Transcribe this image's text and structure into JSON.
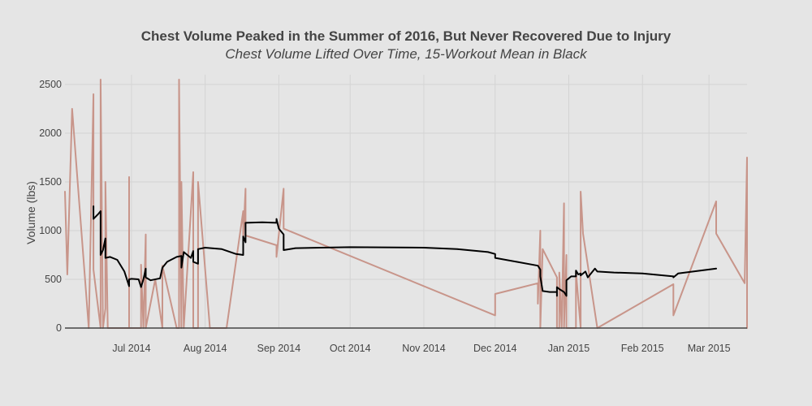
{
  "chart_data": {
    "type": "line",
    "title": "Chest Volume Peaked in the Summer of 2016, But Never Recovered Due to Injury",
    "subtitle": "Chest Volume Lifted Over Time, 15-Workout Mean in Black",
    "xlabel": "",
    "ylabel": "Volume (lbs)",
    "xlim": [
      "2014-06-03",
      "2015-03-17"
    ],
    "ylim": [
      0,
      2600
    ],
    "x_tick_values": [
      "2014-07-01",
      "2014-08-01",
      "2014-09-01",
      "2014-10-01",
      "2014-11-01",
      "2014-12-01",
      "2015-01-01",
      "2015-02-01",
      "2015-03-01"
    ],
    "x_tick_labels": [
      "Jul 2014",
      "Aug 2014",
      "Sep 2014",
      "Oct 2014",
      "Nov 2014",
      "Dec 2014",
      "Jan 2015",
      "Feb 2015",
      "Mar 2015"
    ],
    "y_ticks": [
      0,
      500,
      1000,
      1500,
      2000,
      2500
    ],
    "grid": true,
    "colors": {
      "background": "#e5e5e5",
      "grid": "#d4d4d4",
      "raw_line": "#c8958a",
      "mean_line": "#000000",
      "axis": "#444444",
      "text": "#444444"
    },
    "series": [
      {
        "role": "raw",
        "points": [
          [
            "2014-06-03",
            1400
          ],
          [
            "2014-06-04",
            550
          ],
          [
            "2014-06-06",
            2250
          ],
          [
            "2014-06-13",
            0
          ],
          [
            "2014-06-15",
            2400
          ],
          [
            "2014-06-15",
            600
          ],
          [
            "2014-06-18",
            0
          ],
          [
            "2014-06-18",
            2550
          ],
          [
            "2014-06-19",
            0
          ],
          [
            "2014-06-20",
            200
          ],
          [
            "2014-06-20",
            1500
          ],
          [
            "2014-06-21",
            0
          ],
          [
            "2014-06-30",
            0
          ],
          [
            "2014-06-30",
            1550
          ],
          [
            "2014-06-30",
            0
          ],
          [
            "2014-07-05",
            0
          ],
          [
            "2014-07-05",
            650
          ],
          [
            "2014-07-06",
            0
          ],
          [
            "2014-07-07",
            960
          ],
          [
            "2014-07-07",
            0
          ],
          [
            "2014-07-11",
            500
          ],
          [
            "2014-07-14",
            0
          ],
          [
            "2014-07-14",
            640
          ],
          [
            "2014-07-20",
            0
          ],
          [
            "2014-07-21",
            0
          ],
          [
            "2014-07-21",
            2550
          ],
          [
            "2014-07-22",
            0
          ],
          [
            "2014-07-22",
            1500
          ],
          [
            "2014-07-23",
            0
          ],
          [
            "2014-07-27",
            1600
          ],
          [
            "2014-07-27",
            0
          ],
          [
            "2014-07-29",
            0
          ],
          [
            "2014-07-29",
            1500
          ],
          [
            "2014-08-03",
            0
          ],
          [
            "2014-08-10",
            0
          ],
          [
            "2014-08-17",
            1200
          ],
          [
            "2014-08-17",
            900
          ],
          [
            "2014-08-18",
            1430
          ],
          [
            "2014-08-18",
            950
          ],
          [
            "2014-08-31",
            850
          ],
          [
            "2014-08-31",
            730
          ],
          [
            "2014-09-03",
            1430
          ],
          [
            "2014-09-03",
            1020
          ],
          [
            "2014-12-01",
            130
          ],
          [
            "2014-12-01",
            350
          ],
          [
            "2014-12-19",
            460
          ],
          [
            "2014-12-19",
            250
          ],
          [
            "2014-12-20",
            1000
          ],
          [
            "2014-12-20",
            0
          ],
          [
            "2014-12-21",
            810
          ],
          [
            "2014-12-27",
            520
          ],
          [
            "2014-12-27",
            0
          ],
          [
            "2014-12-28",
            0
          ],
          [
            "2014-12-28",
            570
          ],
          [
            "2014-12-29",
            0
          ],
          [
            "2014-12-30",
            1280
          ],
          [
            "2014-12-30",
            0
          ],
          [
            "2014-12-31",
            750
          ],
          [
            "2014-12-31",
            0
          ],
          [
            "2015-01-04",
            0
          ],
          [
            "2015-01-04",
            580
          ],
          [
            "2015-01-06",
            0
          ],
          [
            "2015-01-06",
            1400
          ],
          [
            "2015-01-07",
            970
          ],
          [
            "2015-01-13",
            0
          ],
          [
            "2015-02-14",
            450
          ],
          [
            "2015-02-14",
            130
          ],
          [
            "2015-03-04",
            1300
          ],
          [
            "2015-03-04",
            970
          ],
          [
            "2015-03-16",
            460
          ],
          [
            "2015-03-17",
            1750
          ],
          [
            "2015-03-17",
            0
          ]
        ]
      },
      {
        "role": "rolling-mean",
        "points": [
          [
            "2014-06-15",
            1250
          ],
          [
            "2014-06-15",
            1120
          ],
          [
            "2014-06-17",
            1170
          ],
          [
            "2014-06-18",
            1200
          ],
          [
            "2014-06-18",
            750
          ],
          [
            "2014-06-19",
            800
          ],
          [
            "2014-06-20",
            920
          ],
          [
            "2014-06-20",
            720
          ],
          [
            "2014-06-22",
            730
          ],
          [
            "2014-06-25",
            700
          ],
          [
            "2014-06-28",
            580
          ],
          [
            "2014-06-30",
            430
          ],
          [
            "2014-06-30",
            500
          ],
          [
            "2014-07-01",
            505
          ],
          [
            "2014-07-04",
            500
          ],
          [
            "2014-07-05",
            420
          ],
          [
            "2014-07-06",
            500
          ],
          [
            "2014-07-07",
            610
          ],
          [
            "2014-07-07",
            520
          ],
          [
            "2014-07-09",
            490
          ],
          [
            "2014-07-13",
            510
          ],
          [
            "2014-07-14",
            620
          ],
          [
            "2014-07-16",
            680
          ],
          [
            "2014-07-20",
            730
          ],
          [
            "2014-07-22",
            740
          ],
          [
            "2014-07-22",
            620
          ],
          [
            "2014-07-23",
            780
          ],
          [
            "2014-07-26",
            720
          ],
          [
            "2014-07-27",
            790
          ],
          [
            "2014-07-27",
            680
          ],
          [
            "2014-07-29",
            660
          ],
          [
            "2014-07-29",
            810
          ],
          [
            "2014-08-01",
            825
          ],
          [
            "2014-08-08",
            810
          ],
          [
            "2014-08-14",
            760
          ],
          [
            "2014-08-17",
            750
          ],
          [
            "2014-08-17",
            940
          ],
          [
            "2014-08-18",
            880
          ],
          [
            "2014-08-18",
            1080
          ],
          [
            "2014-08-25",
            1085
          ],
          [
            "2014-08-31",
            1080
          ],
          [
            "2014-08-31",
            1120
          ],
          [
            "2014-09-01",
            1020
          ],
          [
            "2014-09-03",
            960
          ],
          [
            "2014-09-03",
            800
          ],
          [
            "2014-09-08",
            820
          ],
          [
            "2014-10-01",
            830
          ],
          [
            "2014-11-01",
            825
          ],
          [
            "2014-11-15",
            810
          ],
          [
            "2014-11-28",
            780
          ],
          [
            "2014-12-01",
            760
          ],
          [
            "2014-12-01",
            720
          ],
          [
            "2014-12-10",
            680
          ],
          [
            "2014-12-19",
            640
          ],
          [
            "2014-12-20",
            600
          ],
          [
            "2014-12-20",
            530
          ],
          [
            "2014-12-21",
            380
          ],
          [
            "2014-12-24",
            370
          ],
          [
            "2014-12-27",
            370
          ],
          [
            "2014-12-27",
            330
          ],
          [
            "2014-12-27",
            420
          ],
          [
            "2014-12-28",
            400
          ],
          [
            "2014-12-30",
            370
          ],
          [
            "2014-12-31",
            330
          ],
          [
            "2014-12-31",
            490
          ],
          [
            "2015-01-02",
            530
          ],
          [
            "2015-01-04",
            530
          ],
          [
            "2015-01-04",
            590
          ],
          [
            "2015-01-05",
            550
          ],
          [
            "2015-01-06",
            560
          ],
          [
            "2015-01-06",
            540
          ],
          [
            "2015-01-08",
            580
          ],
          [
            "2015-01-09",
            520
          ],
          [
            "2015-01-12",
            610
          ],
          [
            "2015-01-13",
            580
          ],
          [
            "2015-01-20",
            570
          ],
          [
            "2015-02-01",
            560
          ],
          [
            "2015-02-14",
            530
          ],
          [
            "2015-02-14",
            520
          ],
          [
            "2015-02-16",
            560
          ],
          [
            "2015-03-04",
            610
          ]
        ]
      }
    ]
  }
}
